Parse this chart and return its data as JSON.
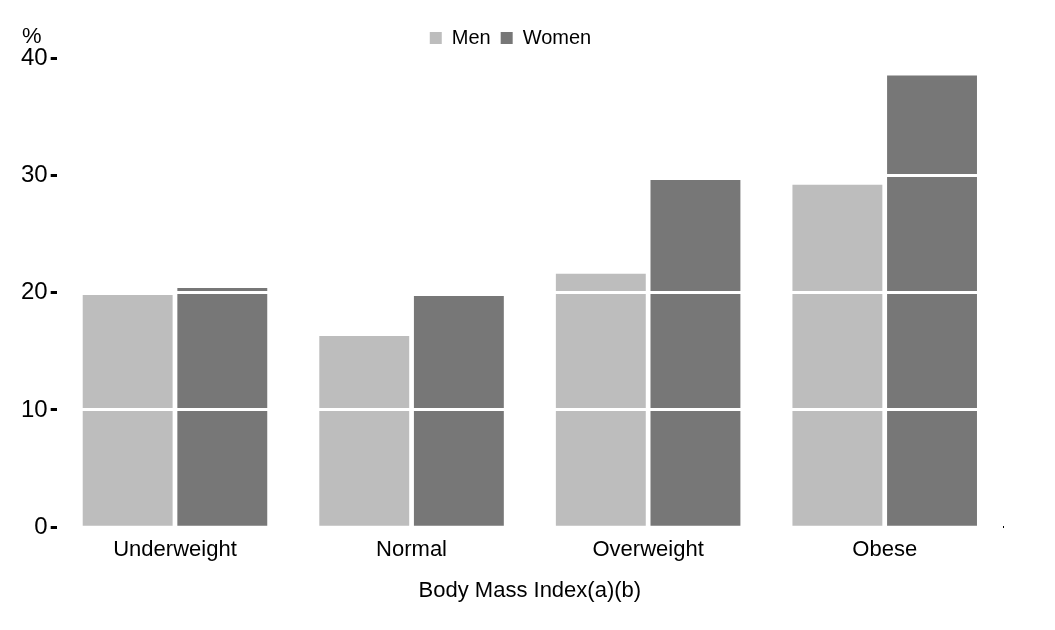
{
  "chart_data": {
    "type": "bar",
    "ylabel": "%",
    "xlabel": "Body Mass Index(a)(b)",
    "categories": [
      "Underweight",
      "Normal",
      "Overweight",
      "Obese"
    ],
    "series": [
      {
        "name": "Men",
        "color": "#bdbdbd",
        "values": [
          19.8,
          16.3,
          21.6,
          29.2
        ]
      },
      {
        "name": "Women",
        "color": "#777777",
        "values": [
          20.4,
          19.7,
          29.6,
          38.5
        ]
      }
    ],
    "ylim": [
      0,
      40
    ],
    "yticks": [
      0,
      10,
      20,
      30,
      40
    ],
    "grid": "y",
    "legend": "top"
  }
}
